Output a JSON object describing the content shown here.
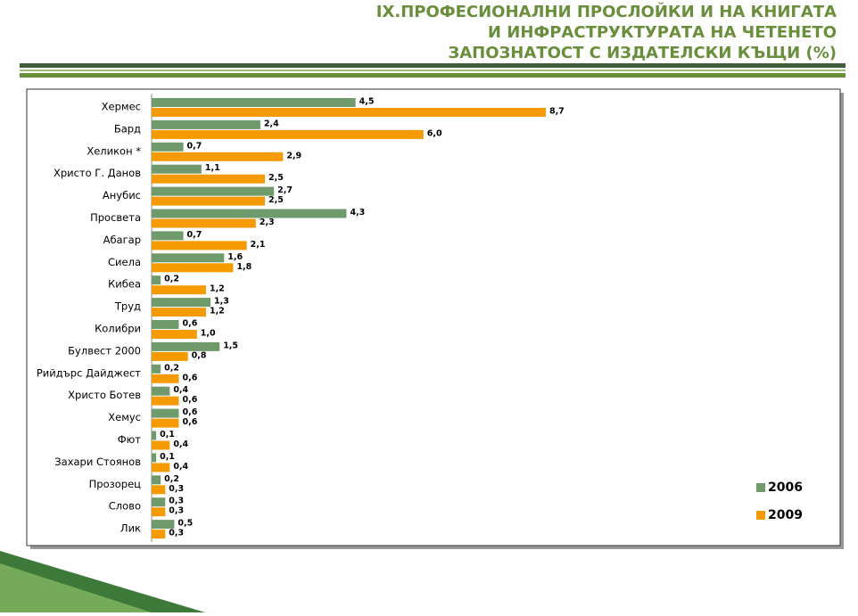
{
  "chart_data": {
    "type": "hbar",
    "title": [
      "IX.ПРОФЕСИОНАЛНИ ПРОСЛОЙКИ И НА КНИГАТА",
      "И ИНФРАСТРУКТУРАТА НА ЧЕТЕНЕТО",
      "ЗАПОЗНАТОСТ С ИЗДАТЕЛСКИ КЪЩИ (%)"
    ],
    "categories": [
      "Хермес",
      "Бард",
      "Хеликон *",
      "Христо Г. Данов",
      "Анубис",
      "Просвета",
      "Абагар",
      "Сиела",
      "Кибеа",
      "Труд",
      "Колибри",
      "Булвест 2000",
      "Рийдърс Дайджест",
      "Христо Ботев",
      "Хемус",
      "Фют",
      "Захари Стоянов",
      "Прозорец",
      "Слово",
      "Лик"
    ],
    "series": [
      {
        "name": "2006",
        "color": "#6f9a6c",
        "values": [
          4.5,
          2.4,
          0.7,
          1.1,
          2.7,
          4.3,
          0.7,
          1.6,
          0.2,
          1.3,
          0.6,
          1.5,
          0.2,
          0.4,
          0.6,
          0.1,
          0.1,
          0.2,
          0.3,
          0.5
        ],
        "value_labels": [
          "4,5",
          "2,4",
          "0,7",
          "1,1",
          "2,7",
          "4,3",
          "0,7",
          "1,6",
          "0,2",
          "1,3",
          "0,6",
          "1,5",
          "0,2",
          "0,4",
          "0,6",
          "0,1",
          "0,1",
          "0,2",
          "0,3",
          "0,5"
        ]
      },
      {
        "name": "2009",
        "color": "#f59a00",
        "values": [
          8.7,
          6.0,
          2.9,
          2.5,
          2.5,
          2.3,
          2.1,
          1.8,
          1.2,
          1.2,
          1.0,
          0.8,
          0.6,
          0.6,
          0.6,
          0.4,
          0.4,
          0.3,
          0.3,
          0.3
        ],
        "value_labels": [
          "8,7",
          "6,0",
          "2,9",
          "2,5",
          "2,5",
          "2,3",
          "2,1",
          "1,8",
          "1,2",
          "1,2",
          "1,0",
          "0,8",
          "0,6",
          "0,6",
          "0,6",
          "0,4",
          "0,4",
          "0,3",
          "0,3",
          "0,3"
        ]
      }
    ],
    "xlim": [
      0,
      15
    ],
    "legend": "lower right"
  }
}
